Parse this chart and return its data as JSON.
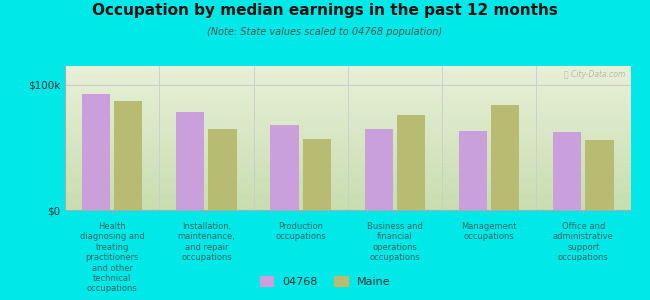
{
  "title": "Occupation by median earnings in the past 12 months",
  "subtitle": "(Note: State values scaled to 04768 population)",
  "categories": [
    "Health\ndiagnosing and\ntreating\npractitioners\nand other\ntechnical\noccupations",
    "Installation,\nmaintenance,\nand repair\noccupations",
    "Production\noccupations",
    "Business and\nfinancial\noperations\noccupations",
    "Management\noccupations",
    "Office and\nadministrative\nsupport\noccupations"
  ],
  "values_04768": [
    93000,
    78000,
    68000,
    65000,
    63000,
    62000
  ],
  "values_maine": [
    87000,
    65000,
    57000,
    76000,
    84000,
    56000
  ],
  "color_04768": "#c9a0dc",
  "color_maine": "#b8bc72",
  "ylim": [
    0,
    115000
  ],
  "yticks": [
    0,
    100000
  ],
  "ytick_labels": [
    "$0",
    "$100k"
  ],
  "background_color": "#00e8e8",
  "legend_04768": "04768",
  "legend_maine": "Maine",
  "watermark": "ⓘ City-Data.com"
}
